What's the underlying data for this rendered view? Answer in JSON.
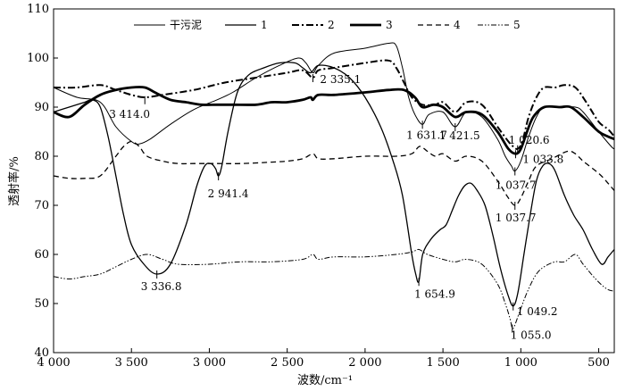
{
  "chart_data": {
    "type": "line",
    "xlabel": "波数/cm⁻¹",
    "ylabel": "透射率/%",
    "xlim": [
      4000,
      400
    ],
    "ylim": [
      40,
      110
    ],
    "x_ticks": [
      {
        "value": 4000,
        "label": "4 000"
      },
      {
        "value": 3500,
        "label": "3 500"
      },
      {
        "value": 3000,
        "label": "3 000"
      },
      {
        "value": 2500,
        "label": "2 500"
      },
      {
        "value": 2000,
        "label": "2 000"
      },
      {
        "value": 1500,
        "label": "1 500"
      },
      {
        "value": 1000,
        "label": "1 000"
      },
      {
        "value": 500,
        "label": "500"
      }
    ],
    "y_ticks": [
      {
        "value": 40,
        "label": "40"
      },
      {
        "value": 50,
        "label": "50"
      },
      {
        "value": 60,
        "label": "60"
      },
      {
        "value": 70,
        "label": "70"
      },
      {
        "value": 80,
        "label": "80"
      },
      {
        "value": 90,
        "label": "90"
      },
      {
        "value": 100,
        "label": "100"
      },
      {
        "value": 110,
        "label": "110"
      }
    ],
    "legend_position": "top",
    "series": [
      {
        "name": "干污泥",
        "style": "solid-thin",
        "color": "#000000",
        "points": [
          [
            4000,
            94
          ],
          [
            3850,
            92
          ],
          [
            3700,
            91
          ],
          [
            3600,
            86
          ],
          [
            3500,
            83
          ],
          [
            3450,
            82.5
          ],
          [
            3380,
            83.5
          ],
          [
            3250,
            86.5
          ],
          [
            3100,
            89.5
          ],
          [
            2950,
            91.5
          ],
          [
            2850,
            93
          ],
          [
            2700,
            96
          ],
          [
            2550,
            98.5
          ],
          [
            2430,
            100
          ],
          [
            2380,
            99
          ],
          [
            2335,
            97
          ],
          [
            2300,
            98.5
          ],
          [
            2200,
            101
          ],
          [
            2000,
            102
          ],
          [
            1850,
            103
          ],
          [
            1800,
            102.5
          ],
          [
            1760,
            98
          ],
          [
            1720,
            92
          ],
          [
            1680,
            88.5
          ],
          [
            1631.7,
            86.5
          ],
          [
            1590,
            88.5
          ],
          [
            1500,
            89
          ],
          [
            1421.5,
            86
          ],
          [
            1350,
            89
          ],
          [
            1250,
            88
          ],
          [
            1150,
            83.5
          ],
          [
            1100,
            80
          ],
          [
            1060,
            78
          ],
          [
            1037.7,
            77
          ],
          [
            1000,
            79
          ],
          [
            950,
            84
          ],
          [
            900,
            88
          ],
          [
            850,
            90
          ],
          [
            750,
            90
          ],
          [
            650,
            90
          ],
          [
            600,
            89
          ],
          [
            500,
            85
          ],
          [
            420,
            82
          ],
          [
            400,
            81.5
          ]
        ]
      },
      {
        "name": "1",
        "style": "solid",
        "color": "#000000",
        "points": [
          [
            4000,
            89
          ],
          [
            3900,
            90
          ],
          [
            3800,
            91
          ],
          [
            3750,
            91.5
          ],
          [
            3700,
            90
          ],
          [
            3650,
            84
          ],
          [
            3600,
            76
          ],
          [
            3550,
            68
          ],
          [
            3500,
            62
          ],
          [
            3420,
            58
          ],
          [
            3336.8,
            56
          ],
          [
            3250,
            58
          ],
          [
            3150,
            66
          ],
          [
            3080,
            74
          ],
          [
            3030,
            78
          ],
          [
            2990,
            78.5
          ],
          [
            2960,
            77.5
          ],
          [
            2941.4,
            76
          ],
          [
            2920,
            78
          ],
          [
            2880,
            85
          ],
          [
            2820,
            93
          ],
          [
            2750,
            96.5
          ],
          [
            2650,
            98
          ],
          [
            2550,
            99
          ],
          [
            2450,
            99
          ],
          [
            2400,
            98
          ],
          [
            2350,
            97
          ],
          [
            2300,
            98.5
          ],
          [
            2200,
            98
          ],
          [
            2100,
            96
          ],
          [
            2000,
            92
          ],
          [
            1900,
            86
          ],
          [
            1820,
            79
          ],
          [
            1760,
            72
          ],
          [
            1700,
            60
          ],
          [
            1675,
            56
          ],
          [
            1654.9,
            54.5
          ],
          [
            1630,
            60
          ],
          [
            1580,
            63
          ],
          [
            1520,
            65
          ],
          [
            1480,
            66
          ],
          [
            1440,
            69
          ],
          [
            1400,
            72
          ],
          [
            1360,
            74
          ],
          [
            1320,
            74.5
          ],
          [
            1280,
            73
          ],
          [
            1230,
            70
          ],
          [
            1180,
            64
          ],
          [
            1130,
            57
          ],
          [
            1080,
            51.5
          ],
          [
            1049.2,
            49.5
          ],
          [
            1020,
            52
          ],
          [
            980,
            60
          ],
          [
            940,
            68
          ],
          [
            900,
            75
          ],
          [
            860,
            78
          ],
          [
            820,
            78.5
          ],
          [
            780,
            77
          ],
          [
            720,
            72
          ],
          [
            660,
            68
          ],
          [
            600,
            65
          ],
          [
            540,
            61
          ],
          [
            480,
            58
          ],
          [
            440,
            59.5
          ],
          [
            400,
            61
          ]
        ]
      },
      {
        "name": "2",
        "style": "dash-dot",
        "color": "#000000",
        "points": [
          [
            4000,
            94
          ],
          [
            3850,
            94
          ],
          [
            3700,
            94.5
          ],
          [
            3600,
            93.5
          ],
          [
            3500,
            92.5
          ],
          [
            3414,
            92
          ],
          [
            3300,
            92.5
          ],
          [
            3100,
            93.5
          ],
          [
            2900,
            95
          ],
          [
            2700,
            96
          ],
          [
            2500,
            97
          ],
          [
            2400,
            97.5
          ],
          [
            2335.1,
            96
          ],
          [
            2300,
            97.5
          ],
          [
            2200,
            98
          ],
          [
            2000,
            99
          ],
          [
            1850,
            99.5
          ],
          [
            1800,
            98
          ],
          [
            1750,
            95
          ],
          [
            1700,
            92
          ],
          [
            1631.7,
            90.5
          ],
          [
            1550,
            90.5
          ],
          [
            1500,
            91
          ],
          [
            1421.5,
            89
          ],
          [
            1350,
            91
          ],
          [
            1250,
            90.5
          ],
          [
            1150,
            86
          ],
          [
            1080,
            83
          ],
          [
            1050,
            82
          ],
          [
            1020.6,
            81.5
          ],
          [
            990,
            83
          ],
          [
            950,
            88
          ],
          [
            900,
            92
          ],
          [
            850,
            94
          ],
          [
            780,
            94
          ],
          [
            720,
            94.5
          ],
          [
            650,
            94
          ],
          [
            580,
            91
          ],
          [
            500,
            87
          ],
          [
            440,
            85.5
          ],
          [
            400,
            84
          ]
        ]
      },
      {
        "name": "3",
        "style": "solid-thick",
        "color": "#000000",
        "points": [
          [
            4000,
            89
          ],
          [
            3900,
            88
          ],
          [
            3800,
            90.5
          ],
          [
            3700,
            92.5
          ],
          [
            3600,
            93.5
          ],
          [
            3500,
            94
          ],
          [
            3414,
            94
          ],
          [
            3350,
            93
          ],
          [
            3250,
            91.5
          ],
          [
            3150,
            91
          ],
          [
            3050,
            90.5
          ],
          [
            2950,
            90.5
          ],
          [
            2850,
            90.5
          ],
          [
            2700,
            90.5
          ],
          [
            2600,
            91
          ],
          [
            2500,
            91
          ],
          [
            2400,
            91.5
          ],
          [
            2350,
            92
          ],
          [
            2335,
            91.5
          ],
          [
            2300,
            92.5
          ],
          [
            2200,
            92.5
          ],
          [
            2000,
            93
          ],
          [
            1850,
            93.5
          ],
          [
            1750,
            93.5
          ],
          [
            1680,
            92
          ],
          [
            1631.7,
            90
          ],
          [
            1560,
            90.5
          ],
          [
            1500,
            90
          ],
          [
            1421.5,
            88
          ],
          [
            1350,
            89
          ],
          [
            1250,
            88.5
          ],
          [
            1150,
            85
          ],
          [
            1080,
            81.5
          ],
          [
            1033.8,
            80.5
          ],
          [
            1000,
            81.5
          ],
          [
            960,
            85
          ],
          [
            920,
            88
          ],
          [
            850,
            90
          ],
          [
            750,
            90
          ],
          [
            680,
            90
          ],
          [
            600,
            88
          ],
          [
            500,
            85
          ],
          [
            440,
            84
          ],
          [
            400,
            83.5
          ]
        ]
      },
      {
        "name": "4",
        "style": "dashed",
        "color": "#000000",
        "points": [
          [
            4000,
            76
          ],
          [
            3900,
            75.5
          ],
          [
            3800,
            75.5
          ],
          [
            3700,
            76
          ],
          [
            3600,
            80
          ],
          [
            3550,
            82
          ],
          [
            3500,
            83
          ],
          [
            3450,
            82
          ],
          [
            3400,
            80
          ],
          [
            3300,
            79
          ],
          [
            3200,
            78.5
          ],
          [
            3100,
            78.5
          ],
          [
            2950,
            78.5
          ],
          [
            2800,
            78.5
          ],
          [
            2600,
            78.8
          ],
          [
            2500,
            79
          ],
          [
            2400,
            79.5
          ],
          [
            2335,
            80.5
          ],
          [
            2300,
            79.5
          ],
          [
            2200,
            79.5
          ],
          [
            2000,
            80
          ],
          [
            1800,
            80
          ],
          [
            1700,
            80.5
          ],
          [
            1650,
            82
          ],
          [
            1600,
            81
          ],
          [
            1550,
            80
          ],
          [
            1500,
            80.5
          ],
          [
            1421.5,
            79
          ],
          [
            1350,
            80
          ],
          [
            1250,
            79
          ],
          [
            1150,
            75
          ],
          [
            1080,
            71.5
          ],
          [
            1037.7,
            70
          ],
          [
            1000,
            71.5
          ],
          [
            950,
            75
          ],
          [
            900,
            78
          ],
          [
            800,
            79.5
          ],
          [
            700,
            81
          ],
          [
            650,
            80.5
          ],
          [
            600,
            79
          ],
          [
            500,
            76.5
          ],
          [
            440,
            74.5
          ],
          [
            400,
            73
          ]
        ]
      },
      {
        "name": "5",
        "style": "dash-dot-dot",
        "color": "#000000",
        "points": [
          [
            4000,
            55.5
          ],
          [
            3900,
            55
          ],
          [
            3800,
            55.5
          ],
          [
            3700,
            56
          ],
          [
            3600,
            57.5
          ],
          [
            3500,
            59
          ],
          [
            3400,
            60
          ],
          [
            3300,
            59
          ],
          [
            3200,
            58
          ],
          [
            3000,
            58
          ],
          [
            2800,
            58.5
          ],
          [
            2600,
            58.5
          ],
          [
            2400,
            59
          ],
          [
            2335,
            60
          ],
          [
            2300,
            59
          ],
          [
            2200,
            59.5
          ],
          [
            2000,
            59.5
          ],
          [
            1800,
            60
          ],
          [
            1700,
            60.5
          ],
          [
            1654,
            61
          ],
          [
            1600,
            60
          ],
          [
            1500,
            59
          ],
          [
            1421,
            58.5
          ],
          [
            1350,
            59
          ],
          [
            1250,
            58
          ],
          [
            1150,
            54
          ],
          [
            1100,
            50
          ],
          [
            1070,
            47
          ],
          [
            1055,
            45
          ],
          [
            1040,
            45.5
          ],
          [
            1000,
            49
          ],
          [
            950,
            53
          ],
          [
            900,
            56
          ],
          [
            850,
            57.5
          ],
          [
            780,
            58.5
          ],
          [
            720,
            58.5
          ],
          [
            650,
            60
          ],
          [
            600,
            58
          ],
          [
            520,
            55
          ],
          [
            450,
            53
          ],
          [
            400,
            52.5
          ]
        ]
      }
    ],
    "annotations": [
      {
        "text": "3 414.0",
        "x": 3414,
        "y": 91.5,
        "series": "2"
      },
      {
        "text": "2 335.1",
        "x": 2335.1,
        "y": 96,
        "series": "2"
      },
      {
        "text": "2 941.4",
        "x": 2941.4,
        "y": 76,
        "series": "1"
      },
      {
        "text": "3 336.8",
        "x": 3336.8,
        "y": 56,
        "series": "1"
      },
      {
        "text": "1 631.7",
        "x": 1631.7,
        "y": 86.5,
        "series": "干污泥"
      },
      {
        "text": "1 421.5",
        "x": 1421.5,
        "y": 86,
        "series": "干污泥"
      },
      {
        "text": "1 020.6",
        "x": 1020.6,
        "y": 81.5,
        "series": "2"
      },
      {
        "text": "1 033.8",
        "x": 1033.8,
        "y": 80.5,
        "series": "3"
      },
      {
        "text": "1 037.7",
        "x": 1037.7,
        "y": 77,
        "series": "干污泥"
      },
      {
        "text": "1 037.7",
        "x": 1037.7,
        "y": 70,
        "series": "4"
      },
      {
        "text": "1 654.9",
        "x": 1654.9,
        "y": 54.5,
        "series": "1"
      },
      {
        "text": "1 049.2",
        "x": 1049.2,
        "y": 49.5,
        "series": "1"
      },
      {
        "text": "1 055.0",
        "x": 1055,
        "y": 45,
        "series": "5"
      }
    ]
  }
}
